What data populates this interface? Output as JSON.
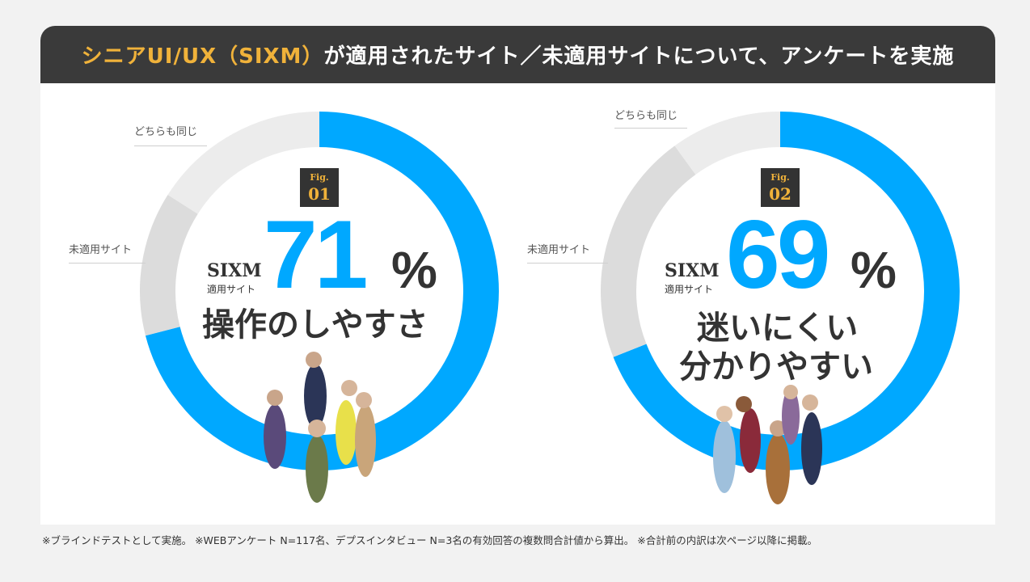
{
  "header": {
    "accent": "シニアUI/UX（SIXM）",
    "rest": "が適用されたサイト／未適用サイトについて、アンケートを実施"
  },
  "chart_data": [
    {
      "type": "pie",
      "style": "donut",
      "fig_label": "Fig.",
      "fig_number": "01",
      "categories": [
        "SIXM 適用サイト",
        "未適用サイト",
        "どちらも同じ"
      ],
      "values": [
        71,
        13,
        16
      ],
      "colors": [
        "#00a8ff",
        "#dcdcdc",
        "#ececec"
      ],
      "value_label": "71",
      "percent_sign": "%",
      "brand": "SIXM",
      "brand_sub": "適用サイト",
      "metric_lines": [
        "操作のしやすさ"
      ],
      "outside_labels": [
        "どちらも同じ",
        "未適用サイト"
      ]
    },
    {
      "type": "pie",
      "style": "donut",
      "fig_label": "Fig.",
      "fig_number": "02",
      "categories": [
        "SIXM 適用サイト",
        "未適用サイト",
        "どちらも同じ"
      ],
      "values": [
        69,
        21,
        10
      ],
      "colors": [
        "#00a8ff",
        "#dcdcdc",
        "#ececec"
      ],
      "value_label": "69",
      "percent_sign": "%",
      "brand": "SIXM",
      "brand_sub": "適用サイト",
      "metric_lines": [
        "迷いにくい",
        "分かりやすい"
      ],
      "outside_labels": [
        "どちらも同じ",
        "未適用サイト"
      ]
    }
  ],
  "footnote": "※ブラインドテストとして実施。 ※WEBアンケート N=117名、デプスインタビュー N=3名の有効回答の複数問合計値から算出。 ※合計前の内訳は次ページ以降に掲載。",
  "colors": {
    "accent": "#f0b23a",
    "blue": "#00a8ff",
    "dark": "#3a3a3a"
  }
}
